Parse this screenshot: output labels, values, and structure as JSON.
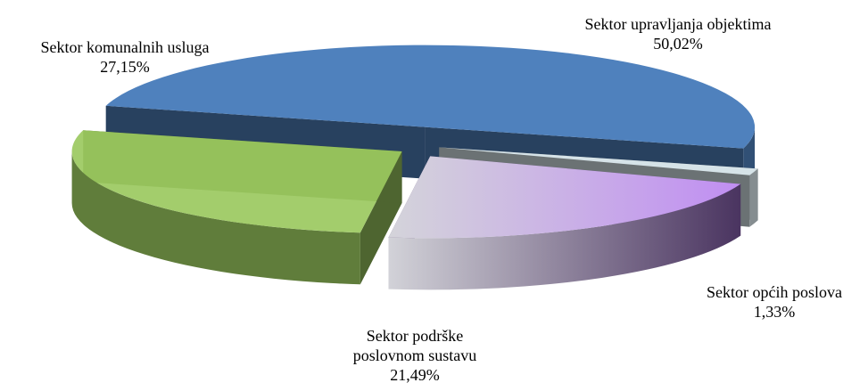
{
  "chart_data": {
    "type": "pie3d",
    "categories": [
      "Sektor upravljanja objektima",
      "Sektor općih poslova",
      "Sektor podrške poslovnom sustavu",
      "Sektor komunalnih usluga"
    ],
    "values": [
      50.02,
      1.33,
      21.49,
      27.15
    ],
    "value_labels": [
      "50,02%",
      "1,33%",
      "21,49%",
      "27,15%"
    ],
    "colors": [
      "#4f81bd",
      "#d6e3e8",
      "#b98ee8",
      "#9bc95f"
    ]
  }
}
